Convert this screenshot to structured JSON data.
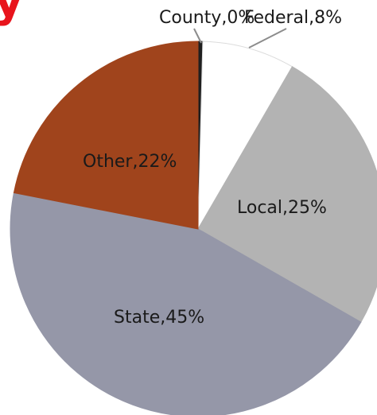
{
  "chart_data": {
    "type": "pie",
    "slices": [
      {
        "label": "County,0%",
        "value": 0.4,
        "color": "#1f1f1f"
      },
      {
        "label": "Federal,8%",
        "value": 8,
        "color": "#ffffff"
      },
      {
        "label": "Local,25%",
        "value": 25,
        "color": "#b3b3b3"
      },
      {
        "label": "State,45%",
        "value": 45,
        "color": "#9597a8"
      },
      {
        "label": "Other,22%",
        "value": 22,
        "color": "#a0441c"
      }
    ],
    "start_angle_deg": 0,
    "direction": "clockwise",
    "legend": "none",
    "title": "",
    "partial_text_top_left": "y"
  }
}
